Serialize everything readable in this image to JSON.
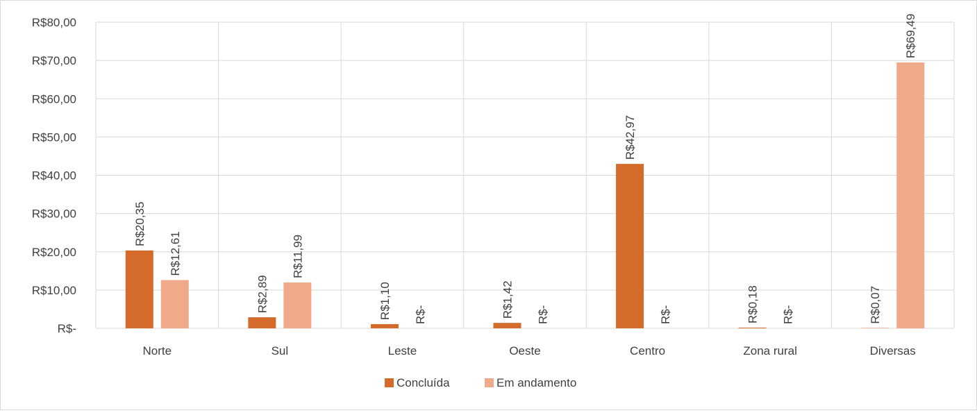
{
  "chart_data": {
    "type": "bar",
    "title": "",
    "xlabel": "",
    "ylabel": "",
    "categories": [
      "Norte",
      "Sul",
      "Leste",
      "Oeste",
      "Centro",
      "Zona rural",
      "Diversas"
    ],
    "series": [
      {
        "name": "Concluída",
        "color": "#d46b2a",
        "values": [
          20.35,
          2.89,
          1.1,
          1.42,
          42.97,
          0.18,
          0.07
        ],
        "labels": [
          "R$20,35",
          "R$2,89",
          "R$1,10",
          "R$1,42",
          "R$42,97",
          "R$0,18",
          "R$0,07"
        ]
      },
      {
        "name": "Em andamento",
        "color": "#f0a98a",
        "values": [
          12.61,
          11.99,
          0,
          0,
          0,
          0,
          69.49
        ],
        "labels": [
          "R$12,61",
          "R$11,99",
          "R$-",
          "R$-",
          "R$-",
          "R$-",
          "R$69,49"
        ]
      }
    ],
    "ylim": [
      0,
      80
    ],
    "yticks": [
      0,
      10,
      20,
      30,
      40,
      50,
      60,
      70,
      80
    ],
    "ytick_labels": [
      "R$-",
      "R$10,00",
      "R$20,00",
      "R$30,00",
      "R$40,00",
      "R$50,00",
      "R$60,00",
      "R$70,00",
      "R$80,00"
    ],
    "grid": true,
    "vertical_category_lines": true,
    "legend_position": "bottom"
  }
}
